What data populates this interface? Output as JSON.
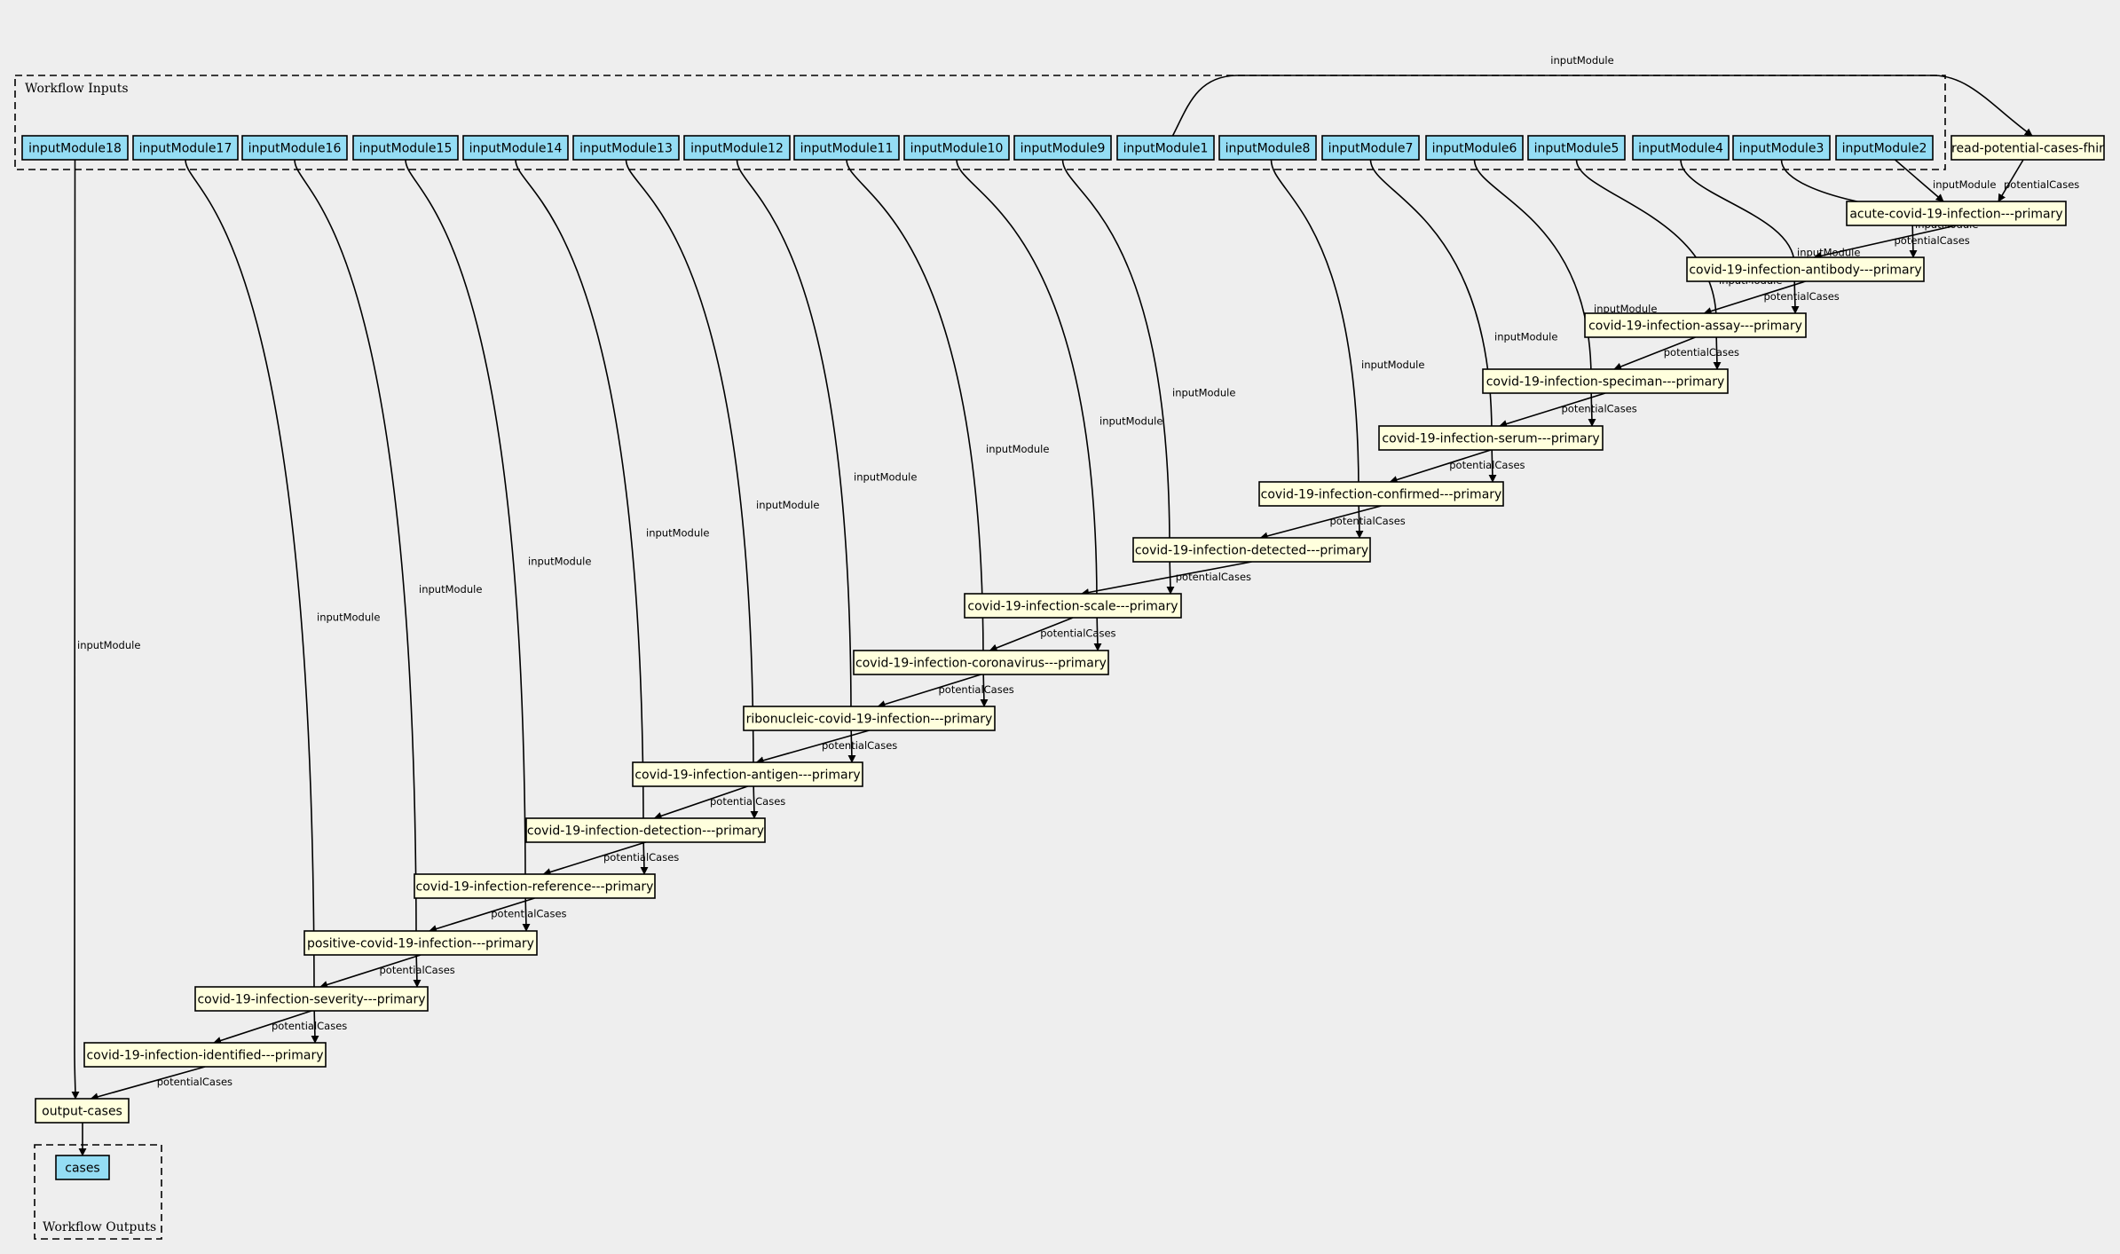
{
  "clusters": {
    "inputs_label": "Workflow Inputs",
    "outputs_label": "Workflow Outputs"
  },
  "inputs": [
    "inputModule18",
    "inputModule17",
    "inputModule16",
    "inputModule15",
    "inputModule14",
    "inputModule13",
    "inputModule12",
    "inputModule11",
    "inputModule10",
    "inputModule9",
    "inputModule1",
    "inputModule8",
    "inputModule7",
    "inputModule6",
    "inputModule5",
    "inputModule4",
    "inputModule3",
    "inputModule2"
  ],
  "steps": [
    "read-potential-cases-fhir",
    "acute-covid-19-infection---primary",
    "covid-19-infection-antibody---primary",
    "covid-19-infection-assay---primary",
    "covid-19-infection-speciman---primary",
    "covid-19-infection-serum---primary",
    "covid-19-infection-confirmed---primary",
    "covid-19-infection-detected---primary",
    "covid-19-infection-scale---primary",
    "covid-19-infection-coronavirus---primary",
    "ribonucleic-covid-19-infection---primary",
    "covid-19-infection-antigen---primary",
    "covid-19-infection-detection---primary",
    "covid-19-infection-reference---primary",
    "positive-covid-19-infection---primary",
    "covid-19-infection-severity---primary",
    "covid-19-infection-identified---primary",
    "output-cases"
  ],
  "outputs": [
    "cases"
  ],
  "edge_labels": {
    "input": "inputModule",
    "chain": "potentialCases"
  },
  "colors": {
    "input_fill": "#94ddf4",
    "step_fill": "#ffffdd",
    "background": "#eeeeee"
  }
}
